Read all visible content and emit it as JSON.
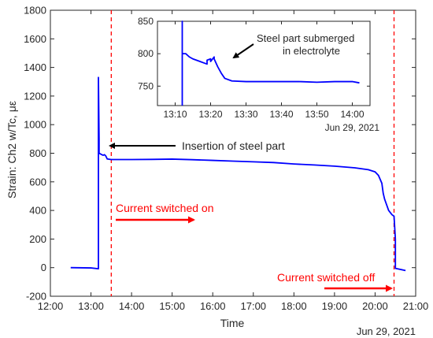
{
  "chart_data": {
    "type": "line",
    "x_axis": {
      "label": "Time",
      "range": [
        "12:00",
        "21:00"
      ],
      "ticks": [
        "12:00",
        "13:00",
        "14:00",
        "15:00",
        "16:00",
        "17:00",
        "18:00",
        "19:00",
        "20:00",
        "21:00"
      ],
      "date_label": "Jun 29, 2021"
    },
    "y_axis": {
      "label": "Strain: Ch2 w/Tc, με",
      "range": [
        -200,
        1800
      ],
      "ticks": [
        -200,
        0,
        200,
        400,
        600,
        800,
        1000,
        1200,
        1400,
        1600,
        1800
      ]
    },
    "grid": false,
    "series": [
      {
        "color": "#0000ff",
        "x": [
          "12:30",
          "13:00",
          "13:11",
          "13:11",
          "13:12",
          "13:12",
          "13:13",
          "13:14",
          "13:15",
          "13:16",
          "13:17",
          "13:18",
          "13:20",
          "13:22",
          "13:24",
          "13:30",
          "14:00",
          "14:30",
          "15:00",
          "15:30",
          "16:00",
          "16:30",
          "17:00",
          "17:30",
          "18:00",
          "18:30",
          "19:00",
          "19:30",
          "19:50",
          "20:00",
          "20:05",
          "20:10",
          "20:12",
          "20:14",
          "20:20",
          "20:25",
          "20:28",
          "20:30",
          "20:30",
          "20:35",
          "20:45"
        ],
        "y": [
          0,
          -2,
          -8,
          1330,
          900,
          800,
          798,
          795,
          793,
          790,
          788,
          786,
          790,
          780,
          760,
          756,
          756,
          757,
          759,
          755,
          750,
          745,
          740,
          735,
          725,
          718,
          710,
          698,
          685,
          670,
          645,
          590,
          520,
          480,
          400,
          370,
          360,
          200,
          -5,
          -10,
          -20
        ]
      }
    ],
    "vertical_lines": [
      {
        "x": "13:30",
        "color": "#ff0000",
        "style": "dashed"
      },
      {
        "x": "20:28",
        "color": "#ff0000",
        "style": "dashed"
      }
    ],
    "annotations": [
      {
        "text": "Insertion of steel part",
        "arrow_color": "#000000",
        "arrow_to": [
          "13:14",
          850
        ]
      },
      {
        "text": "Current switched on",
        "color": "#ff0000",
        "arrow_direction": "right"
      },
      {
        "text": "Current switched off",
        "color": "#ff0000",
        "arrow_direction": "right"
      }
    ],
    "inset": {
      "x_axis": {
        "range": [
          "13:05",
          "14:05"
        ],
        "ticks": [
          "13:10",
          "13:20",
          "13:30",
          "13:40",
          "13:50",
          "14:00"
        ],
        "date_label": "Jun 29, 2021"
      },
      "y_axis": {
        "range": [
          720,
          850
        ],
        "ticks": [
          750,
          800,
          850
        ]
      },
      "series": [
        {
          "color": "#0000ff",
          "x": [
            "13:12",
            "13:12",
            "13:12",
            "13:13",
            "13:14",
            "13:15",
            "13:16",
            "13:17",
            "13:18",
            "13:19",
            "13:19",
            "13:20",
            "13:20",
            "13:21",
            "13:21",
            "13:22",
            "13:23",
            "13:24",
            "13:26",
            "13:30",
            "13:35",
            "13:40",
            "13:45",
            "13:50",
            "13:55",
            "14:00",
            "14:02"
          ],
          "y": [
            720,
            850,
            800,
            800,
            795,
            792,
            790,
            788,
            786,
            784,
            790,
            792,
            788,
            795,
            792,
            780,
            770,
            762,
            758,
            757,
            757,
            757,
            757,
            756,
            757,
            757,
            755
          ]
        }
      ],
      "annotations": [
        {
          "text_lines": [
            "Steel part submerged",
            "in electrolyte"
          ],
          "arrow_color": "#000000",
          "arrow_to": [
            "13:20",
            793
          ]
        }
      ]
    }
  }
}
